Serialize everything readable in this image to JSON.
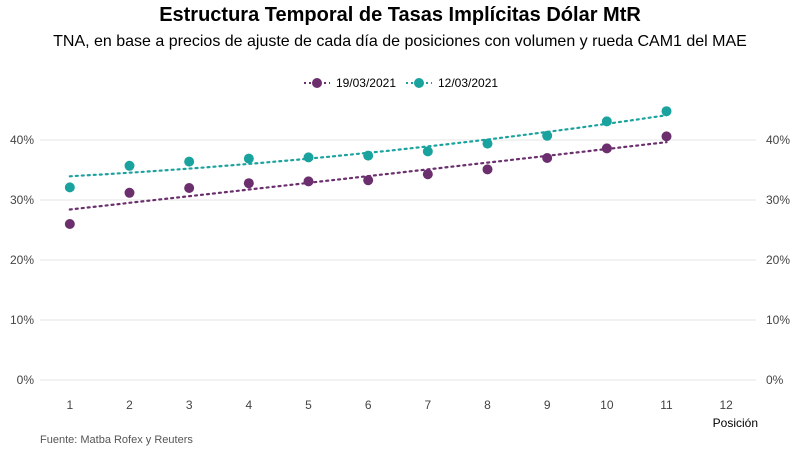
{
  "chart_data": {
    "type": "scatter",
    "title": "Estructura Temporal de Tasas Implícitas Dólar MtR",
    "subtitle": "TNA, en base a precios de ajuste de cada día de posiciones con volumen y rueda CAM1 del MAE",
    "xlabel": "Posición",
    "ylabel": "",
    "xlim": [
      0.5,
      12.5
    ],
    "ylim": [
      0,
      0.45
    ],
    "x_ticks": [
      "1",
      "2",
      "3",
      "4",
      "5",
      "6",
      "7",
      "8",
      "9",
      "10",
      "11",
      "12"
    ],
    "y_ticks": [
      "0%",
      "10%",
      "20%",
      "30%",
      "40%"
    ],
    "x": [
      1,
      2,
      3,
      4,
      5,
      6,
      7,
      8,
      9,
      10,
      11
    ],
    "series": [
      {
        "name": "19/03/2021",
        "color": "#6b2f6e",
        "values": [
          0.26,
          0.312,
          0.32,
          0.328,
          0.331,
          0.333,
          0.343,
          0.351,
          0.37,
          0.386,
          0.406
        ]
      },
      {
        "name": "12/03/2021",
        "color": "#1aa39e",
        "values": [
          0.321,
          0.357,
          0.364,
          0.369,
          0.371,
          0.374,
          0.381,
          0.394,
          0.407,
          0.431,
          0.448
        ]
      }
    ],
    "legend_position": "top",
    "grid": true,
    "source": "Fuente: Matba Rofex y Reuters"
  }
}
